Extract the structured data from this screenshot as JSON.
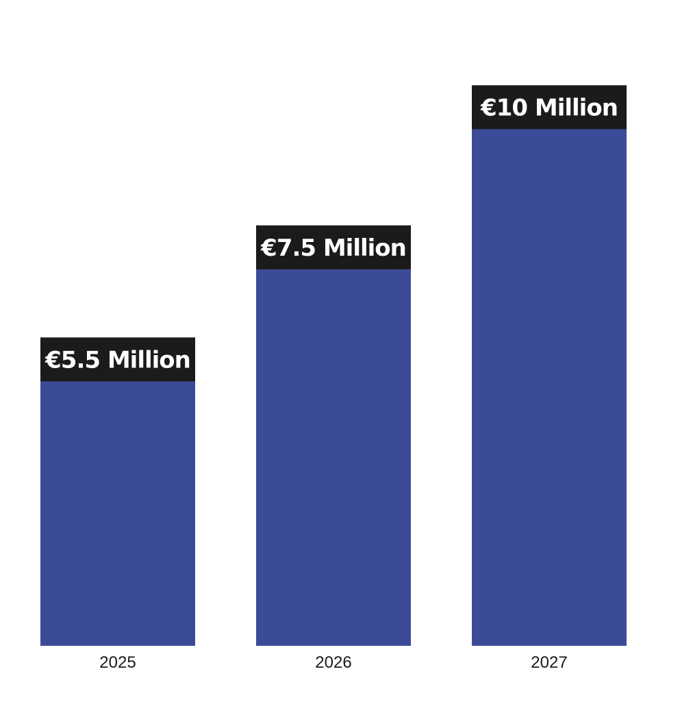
{
  "chart_data": {
    "type": "bar",
    "categories": [
      "2025",
      "2026",
      "2027"
    ],
    "values": [
      5.5,
      7.5,
      10
    ],
    "data_labels": [
      "€5.5 Million",
      "€7.5 Million",
      "€10 Million"
    ],
    "title": "",
    "xlabel": "",
    "ylabel": "",
    "ylim": [
      0,
      10.8
    ],
    "grid": false,
    "legend": "none",
    "colors": {
      "bar": "#3c4b97",
      "label_background": "#1b1b1b",
      "label_text": "#ffffff",
      "tick_text": "#1a1a1a"
    }
  }
}
